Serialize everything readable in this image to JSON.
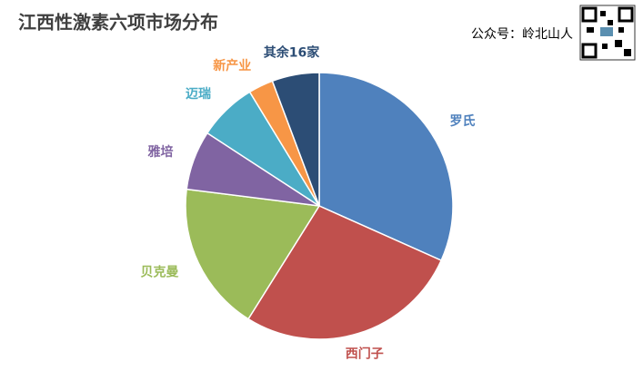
{
  "chart_data": {
    "type": "pie",
    "title": "江西性激素六项市场分布",
    "annotations": [
      "公众号：岭北山人"
    ],
    "categories": [
      "罗氏",
      "西门子",
      "贝克曼",
      "雅培",
      "迈瑞",
      "新产业",
      "其余16家"
    ],
    "values": [
      31.7,
      27.2,
      18.1,
      7.2,
      7.1,
      3.0,
      5.7
    ],
    "colors": [
      "#4f81bd",
      "#c0504d",
      "#9bbb59",
      "#8064a2",
      "#4bacc6",
      "#f79646",
      "#2c4d75"
    ]
  }
}
